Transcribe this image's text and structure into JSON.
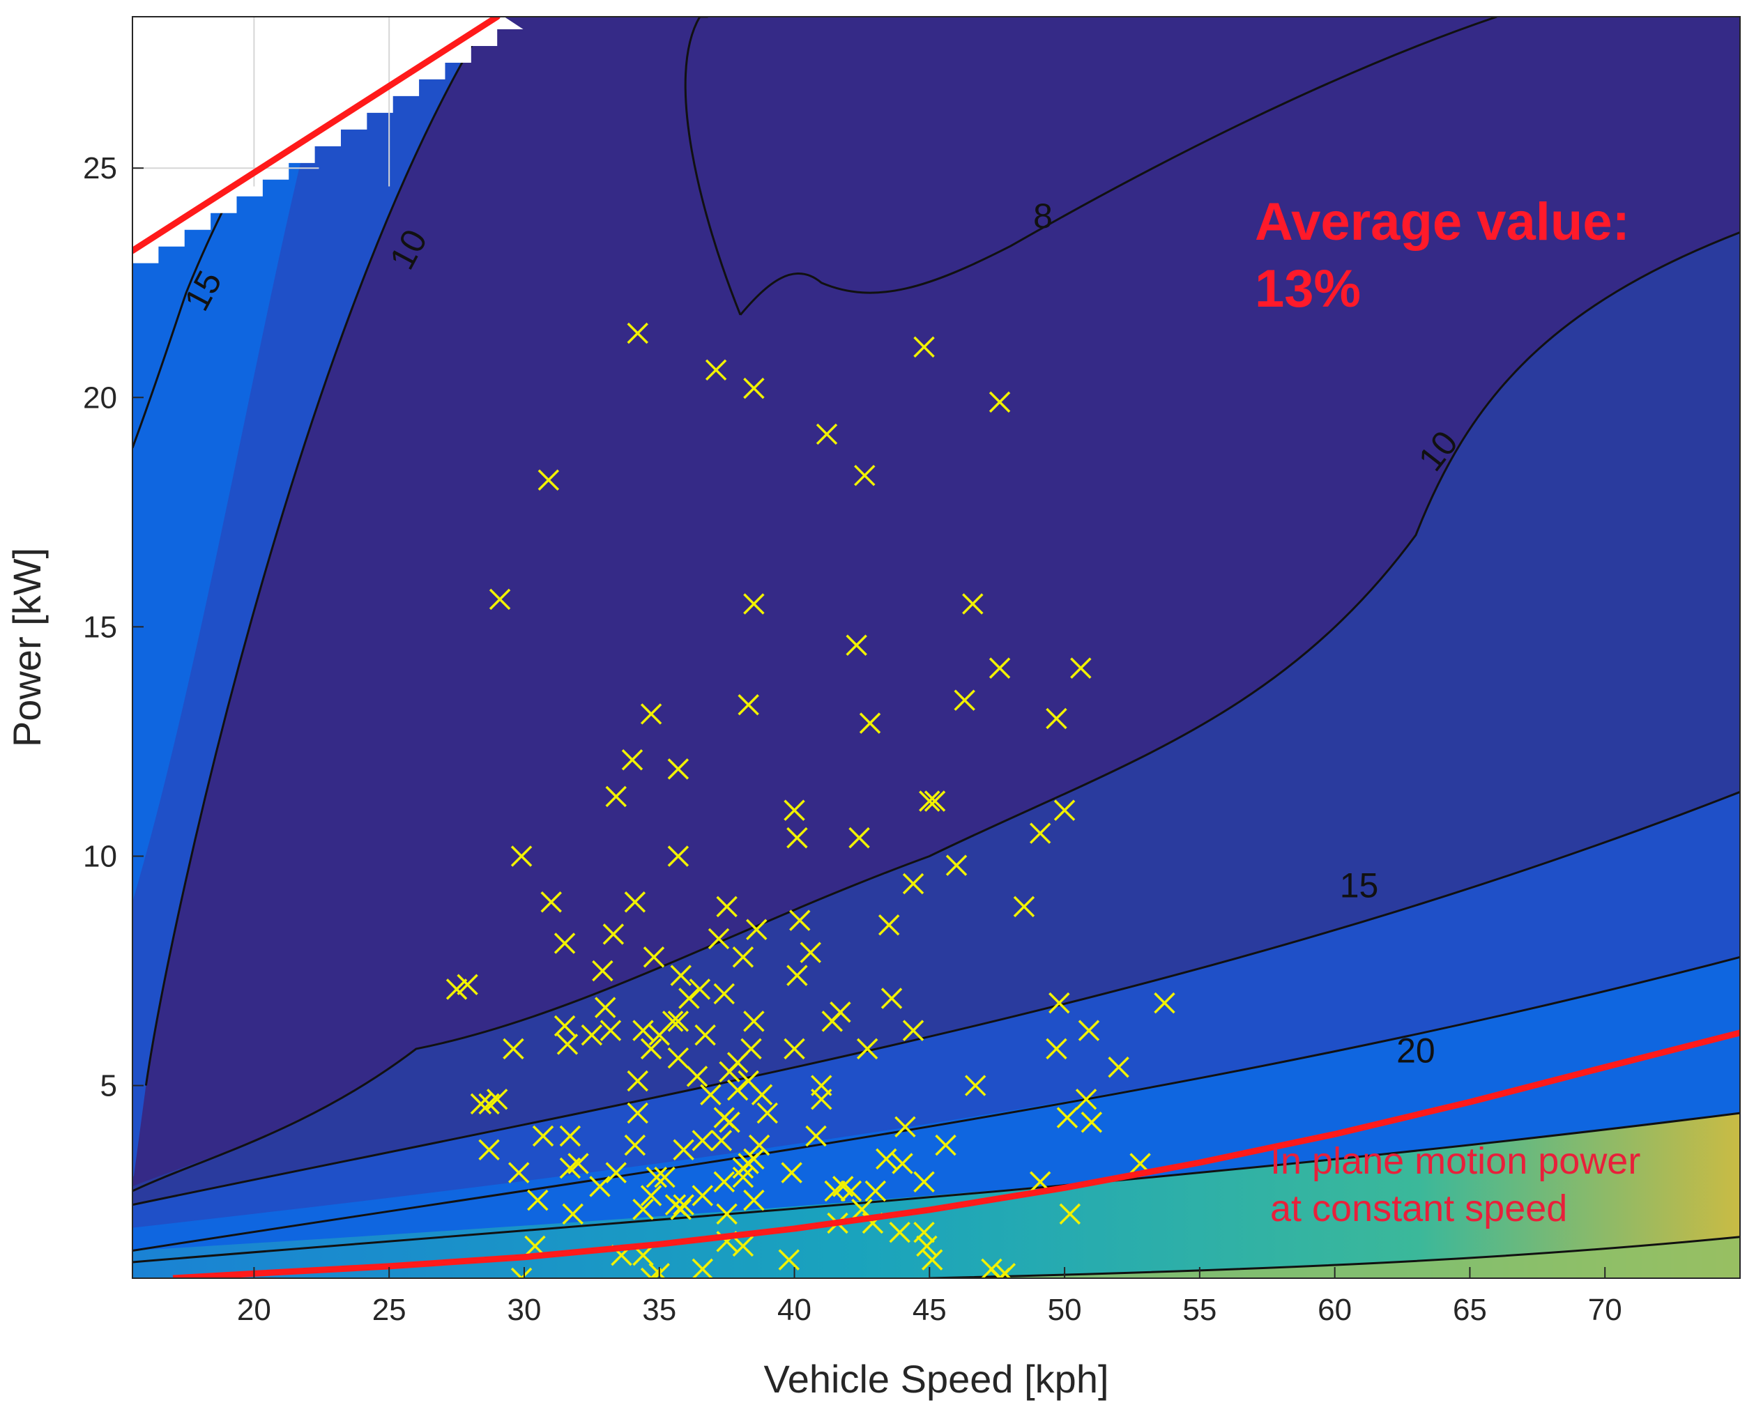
{
  "chart_data": {
    "type": "scatter",
    "subtype": "filled-contour-with-scatter-overlay",
    "xlabel": "Vehicle Speed [kph]",
    "ylabel": "Power [kW]",
    "xlim": [
      15.5,
      75
    ],
    "ylim": [
      0.8,
      28.3
    ],
    "xticks": [
      20,
      25,
      30,
      35,
      40,
      45,
      50,
      55,
      60,
      65,
      70
    ],
    "yticks": [
      5,
      10,
      15,
      20,
      25
    ],
    "grid": false,
    "colormap": [
      "#352a87",
      "#2a3b9e",
      "#1f50c8",
      "#0f66e0",
      "#1a82d4",
      "#1aa3bd",
      "#3bb89a",
      "#8fbf67",
      "#c9bb44"
    ],
    "contour_levels": [
      {
        "label": "8",
        "label_at": [
          49.2,
          23.9
        ]
      },
      {
        "label": "10",
        "label_at": [
          25.8,
          23.2
        ]
      },
      {
        "label": "10",
        "label_at": [
          63.9,
          18.8
        ]
      },
      {
        "label": "15",
        "label_at": [
          18.2,
          22.3
        ]
      },
      {
        "label": "15",
        "label_at": [
          60.9,
          9.3
        ]
      },
      {
        "label": "20",
        "label_at": [
          63.0,
          5.7
        ]
      }
    ],
    "annotations": {
      "average_title": "Average value:",
      "average_value": "13%",
      "curve_label_line1": "In plane motion power",
      "curve_label_line2": "at constant speed"
    },
    "feasibility_limit": {
      "x": [
        15.5,
        29.0
      ],
      "y": [
        23.2,
        28.3
      ],
      "color": "#ff1a1a"
    },
    "constant_speed_curve": {
      "x": [
        17,
        20,
        25,
        30,
        35,
        40,
        45,
        50,
        55,
        60,
        65,
        70,
        75
      ],
      "y": [
        0.8,
        0.9,
        1.06,
        1.26,
        1.54,
        1.88,
        2.29,
        2.77,
        3.32,
        3.94,
        4.64,
        5.4,
        6.15
      ],
      "color": "#ff1a1a"
    },
    "scatter": {
      "marker": "x",
      "color": "#f2f200",
      "points": [
        [
          34.2,
          21.4
        ],
        [
          37.1,
          20.6
        ],
        [
          38.5,
          20.2
        ],
        [
          44.8,
          21.1
        ],
        [
          47.6,
          19.9
        ],
        [
          41.2,
          19.2
        ],
        [
          42.6,
          18.3
        ],
        [
          30.9,
          18.2
        ],
        [
          29.1,
          15.6
        ],
        [
          38.5,
          15.5
        ],
        [
          46.6,
          15.5
        ],
        [
          42.3,
          14.6
        ],
        [
          47.6,
          14.1
        ],
        [
          50.6,
          14.1
        ],
        [
          46.3,
          13.4
        ],
        [
          38.3,
          13.3
        ],
        [
          34.7,
          13.1
        ],
        [
          49.7,
          13.0
        ],
        [
          42.8,
          12.9
        ],
        [
          34.0,
          12.1
        ],
        [
          35.7,
          11.9
        ],
        [
          33.4,
          11.3
        ],
        [
          45.0,
          11.2
        ],
        [
          45.2,
          11.2
        ],
        [
          40.0,
          11.0
        ],
        [
          50.0,
          11.0
        ],
        [
          49.1,
          10.5
        ],
        [
          40.1,
          10.4
        ],
        [
          42.4,
          10.4
        ],
        [
          29.9,
          10.0
        ],
        [
          35.7,
          10.0
        ],
        [
          46.0,
          9.8
        ],
        [
          44.4,
          9.4
        ],
        [
          31.0,
          9.0
        ],
        [
          34.1,
          9.0
        ],
        [
          37.5,
          8.9
        ],
        [
          48.5,
          8.9
        ],
        [
          40.2,
          8.6
        ],
        [
          38.6,
          8.4
        ],
        [
          43.5,
          8.5
        ],
        [
          33.3,
          8.3
        ],
        [
          31.5,
          8.1
        ],
        [
          37.2,
          8.2
        ],
        [
          40.6,
          7.9
        ],
        [
          34.8,
          7.8
        ],
        [
          38.1,
          7.8
        ],
        [
          32.9,
          7.5
        ],
        [
          40.1,
          7.4
        ],
        [
          35.8,
          7.4
        ],
        [
          27.5,
          7.1
        ],
        [
          27.9,
          7.2
        ],
        [
          36.5,
          7.1
        ],
        [
          37.4,
          7.0
        ],
        [
          36.1,
          6.9
        ],
        [
          43.6,
          6.9
        ],
        [
          49.8,
          6.8
        ],
        [
          53.7,
          6.8
        ],
        [
          33.0,
          6.7
        ],
        [
          41.7,
          6.6
        ],
        [
          38.5,
          6.4
        ],
        [
          31.5,
          6.3
        ],
        [
          35.5,
          6.4
        ],
        [
          35.7,
          6.4
        ],
        [
          41.4,
          6.4
        ],
        [
          33.2,
          6.2
        ],
        [
          34.4,
          6.2
        ],
        [
          35.0,
          6.1
        ],
        [
          44.4,
          6.2
        ],
        [
          36.7,
          6.1
        ],
        [
          50.9,
          6.2
        ],
        [
          32.5,
          6.1
        ],
        [
          31.6,
          5.9
        ],
        [
          29.6,
          5.8
        ],
        [
          34.7,
          5.8
        ],
        [
          38.4,
          5.8
        ],
        [
          40.0,
          5.8
        ],
        [
          42.7,
          5.8
        ],
        [
          49.7,
          5.8
        ],
        [
          35.7,
          5.6
        ],
        [
          37.9,
          5.5
        ],
        [
          36.4,
          5.2
        ],
        [
          37.6,
          5.3
        ],
        [
          34.2,
          5.1
        ],
        [
          38.3,
          5.1
        ],
        [
          41.0,
          5.0
        ],
        [
          46.7,
          5.0
        ],
        [
          52.0,
          5.4
        ],
        [
          37.9,
          4.9
        ],
        [
          29.0,
          4.7
        ],
        [
          28.7,
          4.6
        ],
        [
          28.4,
          4.6
        ],
        [
          36.9,
          4.8
        ],
        [
          38.8,
          4.8
        ],
        [
          41.0,
          4.7
        ],
        [
          50.8,
          4.7
        ],
        [
          39.0,
          4.4
        ],
        [
          34.2,
          4.4
        ],
        [
          37.4,
          4.3
        ],
        [
          37.6,
          4.2
        ],
        [
          50.1,
          4.3
        ],
        [
          51.0,
          4.2
        ],
        [
          44.1,
          4.1
        ],
        [
          40.8,
          3.9
        ],
        [
          30.7,
          3.9
        ],
        [
          31.7,
          3.9
        ],
        [
          37.3,
          3.8
        ],
        [
          36.6,
          3.8
        ],
        [
          38.7,
          3.7
        ],
        [
          45.6,
          3.7
        ],
        [
          34.1,
          3.7
        ],
        [
          28.7,
          3.6
        ],
        [
          35.9,
          3.6
        ],
        [
          38.5,
          3.4
        ],
        [
          38.3,
          3.3
        ],
        [
          43.4,
          3.4
        ],
        [
          44.0,
          3.3
        ],
        [
          52.8,
          3.3
        ],
        [
          31.7,
          3.2
        ],
        [
          38.1,
          3.2
        ],
        [
          32.0,
          3.3
        ],
        [
          39.9,
          3.1
        ],
        [
          29.8,
          3.1
        ],
        [
          33.4,
          3.1
        ],
        [
          35.2,
          3.0
        ],
        [
          34.9,
          3.0
        ],
        [
          38.1,
          3.0
        ],
        [
          44.8,
          2.9
        ],
        [
          49.1,
          2.9
        ],
        [
          37.4,
          2.9
        ],
        [
          41.8,
          2.8
        ],
        [
          32.8,
          2.8
        ],
        [
          41.5,
          2.7
        ],
        [
          42.1,
          2.7
        ],
        [
          43.0,
          2.7
        ],
        [
          34.7,
          2.6
        ],
        [
          36.6,
          2.6
        ],
        [
          38.5,
          2.5
        ],
        [
          30.5,
          2.5
        ],
        [
          35.9,
          2.4
        ],
        [
          35.6,
          2.4
        ],
        [
          34.4,
          2.3
        ],
        [
          42.5,
          2.3
        ],
        [
          35.8,
          2.3
        ],
        [
          37.5,
          2.2
        ],
        [
          31.8,
          2.2
        ],
        [
          50.2,
          2.2
        ],
        [
          42.9,
          2.0
        ],
        [
          44.8,
          1.8
        ],
        [
          41.6,
          2.0
        ],
        [
          43.9,
          1.8
        ],
        [
          37.5,
          1.6
        ],
        [
          38.1,
          1.5
        ],
        [
          44.9,
          1.5
        ],
        [
          33.6,
          1.3
        ],
        [
          30.4,
          1.5
        ],
        [
          34.4,
          1.3
        ],
        [
          39.8,
          1.2
        ],
        [
          36.6,
          1.0
        ],
        [
          45.1,
          1.2
        ],
        [
          47.3,
          1.0
        ],
        [
          47.8,
          0.9
        ],
        [
          35.0,
          0.9
        ],
        [
          29.9,
          0.8
        ],
        [
          34.7,
          0.8
        ],
        [
          47.6,
          0.8
        ]
      ]
    }
  }
}
